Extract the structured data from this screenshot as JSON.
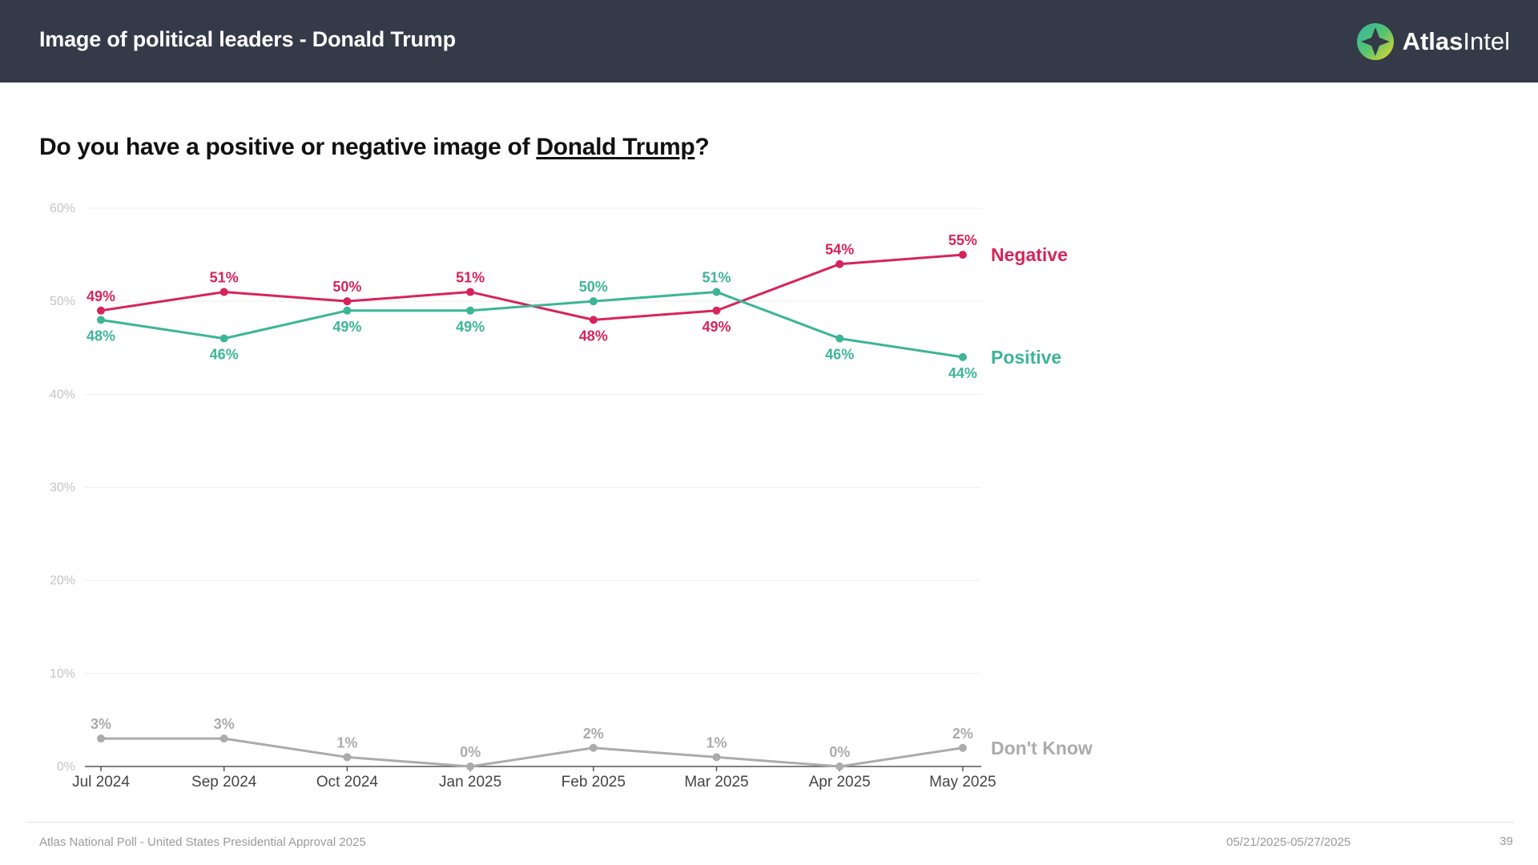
{
  "header": {
    "title": "Image of political leaders - Donald Trump",
    "brand_bold": "Atlas",
    "brand_light": "Intel"
  },
  "question": {
    "prefix": "Do you have a positive or negative image of ",
    "subject": "Donald Trump",
    "suffix": "?"
  },
  "footer": {
    "source": "Atlas National Poll - United States Presidential Approval 2025",
    "date_range": "05/21/2025-05/27/2025",
    "page_number": "39"
  },
  "colors": {
    "header_bg": "#343a48",
    "negative": "#d6245a",
    "positive": "#3cb597",
    "dont_know": "#ababab"
  },
  "chart_data": {
    "type": "line",
    "title": "Do you have a positive or negative image of Donald Trump?",
    "x": [
      "Jul 2024",
      "Sep 2024",
      "Oct 2024",
      "Jan 2025",
      "Feb 2025",
      "Mar 2025",
      "Apr 2025",
      "May 2025"
    ],
    "ylim": [
      0,
      60
    ],
    "yticks": [
      0,
      10,
      20,
      30,
      40,
      50,
      60
    ],
    "ytick_labels": [
      "0%",
      "10%",
      "20%",
      "30%",
      "40%",
      "50%",
      "60%"
    ],
    "grid": true,
    "series": [
      {
        "name": "Negative",
        "key": "negative",
        "color": "#d6245a",
        "values": [
          49,
          51,
          50,
          51,
          48,
          49,
          54,
          55
        ],
        "labels": [
          "49%",
          "51%",
          "50%",
          "51%",
          "48%",
          "49%",
          "54%",
          "55%"
        ],
        "label_pos": [
          "above",
          "above",
          "above",
          "above",
          "below",
          "below",
          "above",
          "above"
        ]
      },
      {
        "name": "Positive",
        "key": "positive",
        "color": "#3cb597",
        "values": [
          48,
          46,
          49,
          49,
          50,
          51,
          46,
          44
        ],
        "labels": [
          "48%",
          "46%",
          "49%",
          "49%",
          "50%",
          "51%",
          "46%",
          "44%"
        ],
        "label_pos": [
          "below",
          "below",
          "below",
          "below",
          "above",
          "above",
          "below",
          "below"
        ]
      },
      {
        "name": "Don't Know",
        "key": "dont-know",
        "color": "#ababab",
        "values": [
          3,
          3,
          1,
          0,
          2,
          1,
          0,
          2
        ],
        "labels": [
          "3%",
          "3%",
          "1%",
          "0%",
          "2%",
          "1%",
          "0%",
          "2%"
        ],
        "label_pos": [
          "above",
          "above",
          "above",
          "above",
          "above",
          "above",
          "above",
          "above"
        ]
      }
    ]
  }
}
